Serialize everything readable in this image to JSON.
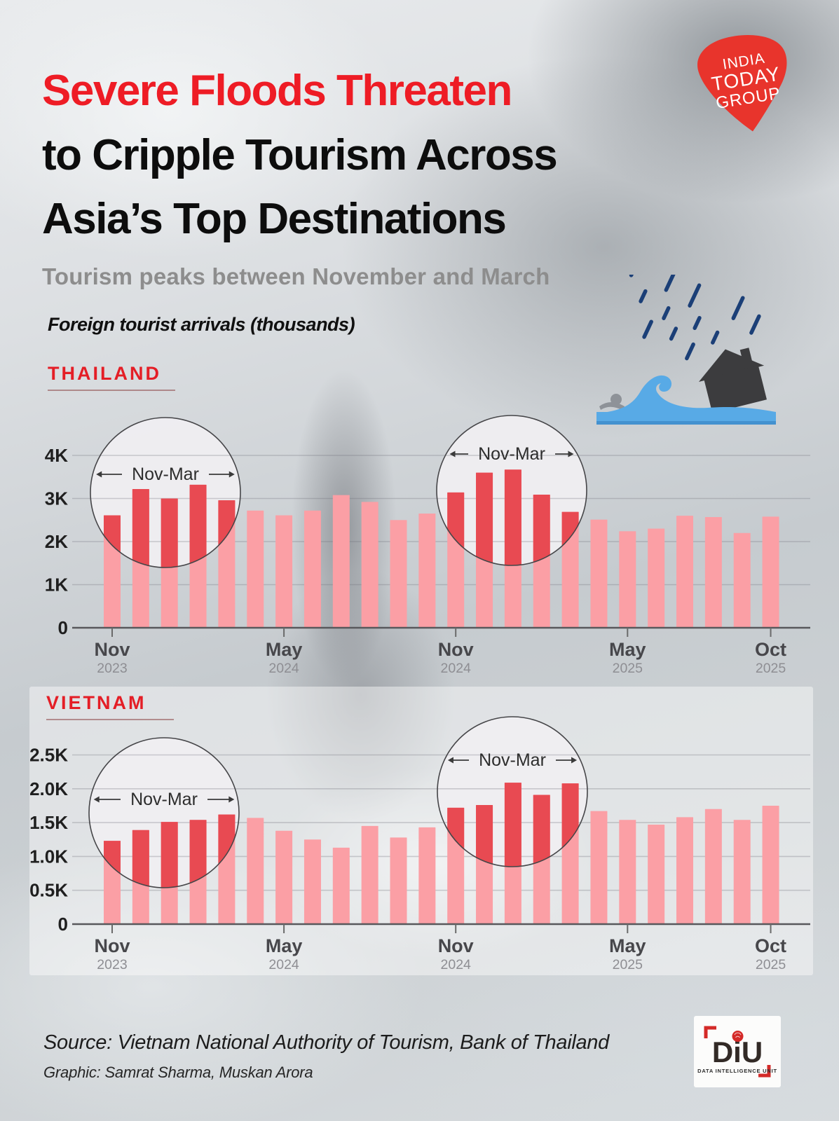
{
  "header": {
    "title_line1": "Severe Floods Threaten",
    "title_line2": "to Cripple Tourism Across",
    "title_line3": "Asia’s Top Destinations",
    "subtitle": "Tourism peaks between November and March",
    "units_label": "Foreign tourist arrivals (thousands)"
  },
  "logo": {
    "lines": [
      "INDIA",
      "TODAY",
      "GROUP"
    ]
  },
  "annotation_label": "Nov-Mar",
  "chart_data": [
    {
      "type": "bar",
      "title": "THAILAND",
      "ylabel": "Foreign tourist arrivals (thousands)",
      "unit": "thousands",
      "categories": [
        "Nov 2023",
        "Dec 2023",
        "Jan 2024",
        "Feb 2024",
        "Mar 2024",
        "Apr 2024",
        "May 2024",
        "Jun 2024",
        "Jul 2024",
        "Aug 2024",
        "Sep 2024",
        "Oct 2024",
        "Nov 2024",
        "Dec 2024",
        "Jan 2025",
        "Feb 2025",
        "Mar 2025",
        "Apr 2025",
        "May 2025",
        "Jun 2025",
        "Jul 2025",
        "Aug 2025",
        "Sep 2025",
        "Oct 2025"
      ],
      "values": [
        2610,
        3220,
        3000,
        3320,
        2960,
        2720,
        2610,
        2720,
        3080,
        2920,
        2500,
        2650,
        3140,
        3600,
        3670,
        3090,
        2690,
        2510,
        2240,
        2300,
        2600,
        2570,
        2200,
        2580
      ],
      "y_ticks": [
        "0",
        "1K",
        "2K",
        "3K",
        "4K"
      ],
      "ylim": [
        0,
        4300
      ],
      "grid": true,
      "x_ticks": [
        {
          "month": "Nov",
          "year": "2023",
          "month_index": 0
        },
        {
          "month": "May",
          "year": "2024",
          "month_index": 6
        },
        {
          "month": "Nov",
          "year": "2024",
          "month_index": 12
        },
        {
          "month": "May",
          "year": "2025",
          "month_index": 18
        },
        {
          "month": "Oct",
          "year": "2025",
          "month_index": 23
        }
      ],
      "highlight_month_ranges": [
        [
          0,
          4
        ],
        [
          12,
          16
        ]
      ],
      "highlight_annotation": "Nov-Mar"
    },
    {
      "type": "bar",
      "title": "VIETNAM",
      "ylabel": "Foreign tourist arrivals (thousands)",
      "unit": "thousands",
      "categories": [
        "Nov 2023",
        "Dec 2023",
        "Jan 2024",
        "Feb 2024",
        "Mar 2024",
        "Apr 2024",
        "May 2024",
        "Jun 2024",
        "Jul 2024",
        "Aug 2024",
        "Sep 2024",
        "Oct 2024",
        "Nov 2024",
        "Dec 2024",
        "Jan 2025",
        "Feb 2025",
        "Mar 2025",
        "Apr 2025",
        "May 2025",
        "Jun 2025",
        "Jul 2025",
        "Aug 2025",
        "Sep 2025",
        "Oct 2025"
      ],
      "values": [
        1230,
        1390,
        1510,
        1540,
        1620,
        1570,
        1380,
        1250,
        1130,
        1450,
        1280,
        1430,
        1720,
        1760,
        2090,
        1910,
        2080,
        1670,
        1540,
        1470,
        1580,
        1700,
        1540,
        1750
      ],
      "y_ticks": [
        "0",
        "0.5K",
        "1.0K",
        "1.5K",
        "2.0K",
        "2.5K"
      ],
      "ylim": [
        0,
        2700
      ],
      "grid": true,
      "x_ticks": [
        {
          "month": "Nov",
          "year": "2023",
          "month_index": 0
        },
        {
          "month": "May",
          "year": "2024",
          "month_index": 6
        },
        {
          "month": "Nov",
          "year": "2024",
          "month_index": 12
        },
        {
          "month": "May",
          "year": "2025",
          "month_index": 18
        },
        {
          "month": "Oct",
          "year": "2025",
          "month_index": 23
        }
      ],
      "highlight_month_ranges": [
        [
          0,
          4
        ],
        [
          12,
          16
        ]
      ],
      "highlight_annotation": "Nov-Mar"
    }
  ],
  "footer": {
    "source": "Source: Vietnam National Authority of Tourism, Bank of Thailand",
    "credit": "Graphic: Samrat Sharma, Muskan Arora",
    "diu": {
      "text": "DiU",
      "subtext": "DATA INTELLIGENCE UNIT"
    }
  },
  "colors": {
    "bar_light": "#FB9FA5",
    "bar_dark": "#E84A52",
    "accent_red": "#E41E26",
    "title_red": "#EE1C25",
    "rain_blue": "#1B3F77",
    "wave_blue": "#58AAE6",
    "house_gray": "#3C3C3E",
    "circle_fill": "#EFEEF1"
  }
}
